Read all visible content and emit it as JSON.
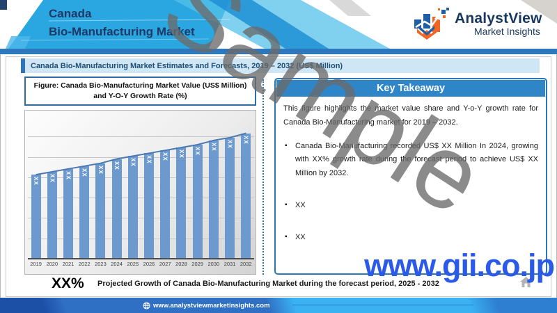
{
  "header": {
    "title_line1": "Canada",
    "title_line2": "Bio-Manufacturing Market",
    "logo_name": "AnalystView",
    "logo_tagline": "Market Insights"
  },
  "subtitle_bar": "Canada Bio-Manufacturing Market Estimates and Forecasts, 2019 – 2032 (US$ Million)",
  "figure": {
    "title_line1": "Figure: Canada Bio-Manufacturing Market Value (US$ Million)",
    "title_line2": "and Y-O-Y Growth Rate (%)"
  },
  "chart_data": {
    "type": "bar",
    "title": "Canada Bio-Manufacturing Market Value (US$ Million) and Y-O-Y Growth Rate (%)",
    "categories": [
      "2019",
      "2020",
      "2021",
      "2022",
      "2023",
      "2024",
      "2025",
      "2026",
      "2027",
      "2028",
      "2029",
      "2030",
      "2031",
      "2032"
    ],
    "series": [
      {
        "name": "Market Value (US$ Million)",
        "type": "bar",
        "values": [
          "XX",
          "XX",
          "XX",
          "XX",
          "XX",
          "XX",
          "XX",
          "XX",
          "XX",
          "XX",
          "XX",
          "XX",
          "XX",
          "XX"
        ]
      },
      {
        "name": "Y-O-Y Growth Rate (%)",
        "type": "line",
        "values": [
          "XX",
          "XX",
          "XX",
          "XX",
          "XX",
          "XX",
          "XX",
          "XX",
          "XX",
          "XX",
          "XX",
          "XX",
          "XX",
          "XX"
        ]
      }
    ],
    "bar_heights_pct": [
      59,
      61,
      63,
      65,
      67,
      70,
      72,
      74,
      76,
      78,
      80,
      83,
      85,
      88
    ],
    "xlabel": "",
    "ylabel": "",
    "grid": true,
    "legend": false,
    "bar_color": "#6d9ace",
    "line_color": "#4a78b0",
    "note": "values masked as XX in source; bar_heights_pct estimated from pixels"
  },
  "key_takeaway": {
    "title": "Key Takeaway",
    "intro": "This figure highlights the market value share and Y-o-Y growth rate for Canada Bio-Manufacturing market for 2019 – 2032.",
    "bullets": [
      "Canada Bio-Manufacturing recorded US$ XX Million In 2024, growing with XX% growth rate during the forecast period to achieve US$ XX Million by 2032.",
      "XX",
      "XX"
    ]
  },
  "highlight": {
    "value": "XX%",
    "caption": "Projected Growth of Canada Bio-Manufacturing Market during the forecast period, 2025 - 2032"
  },
  "watermarks": {
    "sample": "Sample",
    "gii": "www.gii.co.jp"
  },
  "footer": {
    "url": "www.analystviewmarketinsights.com"
  },
  "colors": {
    "accent_blue": "#2e75b6",
    "header_band": "#2aa7e0",
    "key_header": "#2e86c9",
    "subtitle_bg": "#cfe7f5",
    "bar_fill": "#6d9ace",
    "growth_line": "#4a78b0",
    "gii_blue": "#2b59e8",
    "watermark_gray": "#6a6a6a",
    "logo_blue": "#1f5fa8",
    "logo_orange": "#f26522",
    "title_navy": "#1f3864"
  }
}
